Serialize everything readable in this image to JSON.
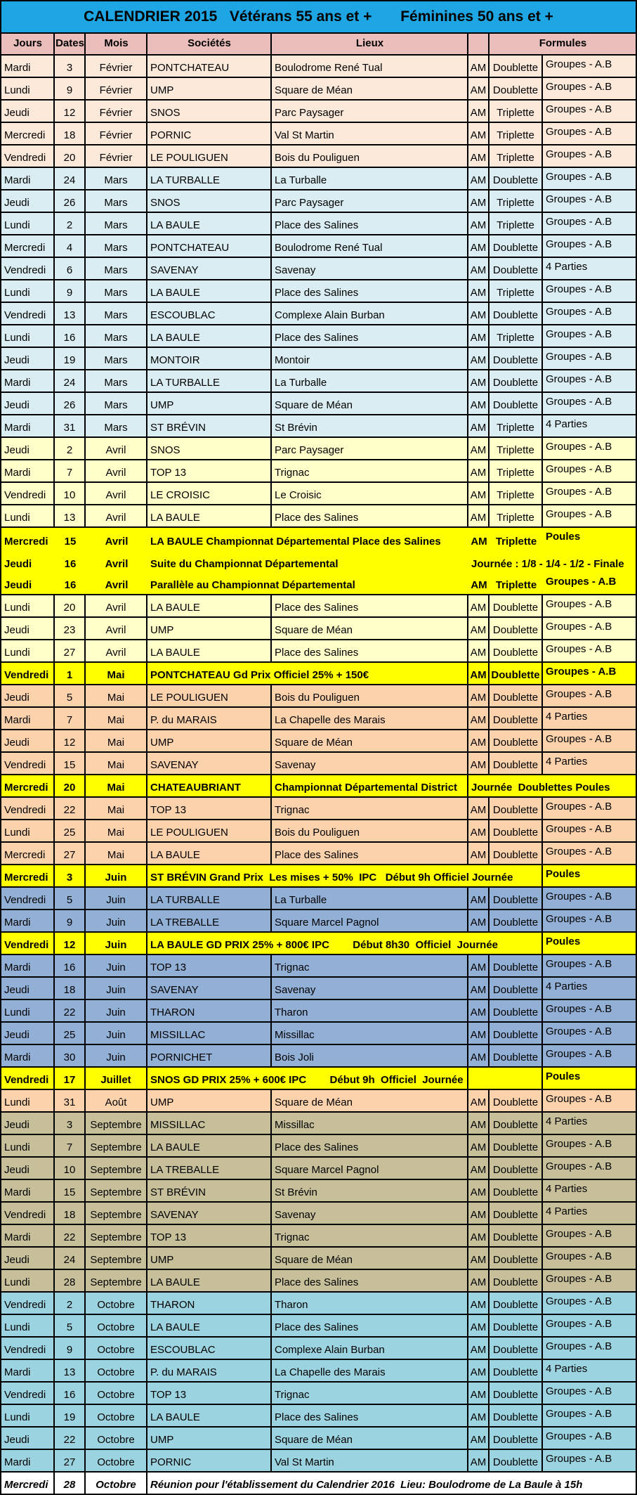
{
  "title": "CALENDRIER 2015   Vétérans 55 ans et +       Féminines 50 ans et +",
  "headers": [
    "Jours",
    "Dates",
    "Mois",
    "Sociétés",
    "Lieux",
    "",
    "Formules"
  ],
  "colors": {
    "title_bg": "#1EA6E4",
    "header_bg": "#E9BEBB",
    "border": "#000000",
    "fevrier": "#FCE9DA",
    "mars": "#D9EDF2",
    "avril": "#FFFFC9",
    "mai": "#FBD2AC",
    "juin": "#92AFD5",
    "aout": "#FBD2AC",
    "septembre": "#C6BF99",
    "octobre": "#9CD3E0",
    "highlight": "#FFFF00",
    "note": "#FFFFFF"
  },
  "rows": [
    {
      "day": "Mardi",
      "date": "3",
      "month": "Février",
      "club": "PONTCHATEAU",
      "venue": "Boulodrome René Tual",
      "am": "AM",
      "formula": "Doublette",
      "groups": "Groupes - A.B",
      "section": "fevrier"
    },
    {
      "day": "Lundi",
      "date": "9",
      "month": "Février",
      "club": "UMP",
      "venue": "Square de Méan",
      "am": "AM",
      "formula": "Doublette",
      "groups": "Groupes - A.B",
      "section": "fevrier"
    },
    {
      "day": "Jeudi",
      "date": "12",
      "month": "Février",
      "club": "SNOS",
      "venue": "Parc Paysager",
      "am": "AM",
      "formula": "Triplette",
      "groups": "Groupes - A.B",
      "section": "fevrier"
    },
    {
      "day": "Mercredi",
      "date": "18",
      "month": "Février",
      "club": "PORNIC",
      "venue": "Val St Martin",
      "am": "AM",
      "formula": "Triplette",
      "groups": "Groupes - A.B",
      "section": "fevrier"
    },
    {
      "day": "Vendredi",
      "date": "20",
      "month": "Février",
      "club": "LE POULIGUEN",
      "venue": "Bois du Pouliguen",
      "am": "AM",
      "formula": "Triplette",
      "groups": "Groupes - A.B",
      "section": "fevrier"
    },
    {
      "day": "Mardi",
      "date": "24",
      "month": "Mars",
      "club": "LA TURBALLE",
      "venue": "La Turballe",
      "am": "AM",
      "formula": "Doublette",
      "groups": "Groupes - A.B",
      "section": "mars"
    },
    {
      "day": "Jeudi",
      "date": "26",
      "month": "Mars",
      "club": "SNOS",
      "venue": "Parc Paysager",
      "am": "AM",
      "formula": "Triplette",
      "groups": "Groupes - A.B",
      "section": "mars"
    },
    {
      "day": "Lundi",
      "date": "2",
      "month": "Mars",
      "club": "LA BAULE",
      "venue": "Place des Salines",
      "am": "AM",
      "formula": "Triplette",
      "groups": "Groupes - A.B",
      "section": "mars"
    },
    {
      "day": "Mercredi",
      "date": "4",
      "month": "Mars",
      "club": "PONTCHATEAU",
      "venue": "Boulodrome René Tual",
      "am": "AM",
      "formula": "Doublette",
      "groups": "Groupes - A.B",
      "section": "mars"
    },
    {
      "day": "Vendredi",
      "date": "6",
      "month": "Mars",
      "club": "SAVENAY",
      "venue": "Savenay",
      "am": "AM",
      "formula": "Doublette",
      "groups": "4 Parties",
      "section": "mars"
    },
    {
      "day": "Lundi",
      "date": "9",
      "month": "Mars",
      "club": "LA BAULE",
      "venue": "Place des Salines",
      "am": "AM",
      "formula": "Triplette",
      "groups": "Groupes - A.B",
      "section": "mars"
    },
    {
      "day": "Vendredi",
      "date": "13",
      "month": "Mars",
      "club": "ESCOUBLAC",
      "venue": "Complexe Alain Burban",
      "am": "AM",
      "formula": "Doublette",
      "groups": "Groupes - A.B",
      "section": "mars"
    },
    {
      "day": "Lundi",
      "date": "16",
      "month": "Mars",
      "club": "LA BAULE",
      "venue": "Place des Salines",
      "am": "AM",
      "formula": "Triplette",
      "groups": "Groupes - A.B",
      "section": "mars"
    },
    {
      "day": "Jeudi",
      "date": "19",
      "month": "Mars",
      "club": "MONTOIR",
      "venue": "Montoir",
      "am": "AM",
      "formula": "Doublette",
      "groups": "Groupes - A.B",
      "section": "mars"
    },
    {
      "day": "Mardi",
      "date": "24",
      "month": "Mars",
      "club": "LA TURBALLE",
      "venue": "La Turballe",
      "am": "AM",
      "formula": "Doublette",
      "groups": "Groupes - A.B",
      "section": "mars"
    },
    {
      "day": "Jeudi",
      "date": "26",
      "month": "Mars",
      "club": "UMP",
      "venue": "Square de Méan",
      "am": "AM",
      "formula": "Doublette",
      "groups": "Groupes - A.B",
      "section": "mars"
    },
    {
      "day": "Mardi",
      "date": "31",
      "month": "Mars",
      "club": "ST BRÉVIN",
      "venue": "St Brévin",
      "am": "AM",
      "formula": "Triplette",
      "groups": "4 Parties",
      "section": "mars"
    },
    {
      "day": "Jeudi",
      "date": "2",
      "month": "Avril",
      "club": "SNOS",
      "venue": "Parc Paysager",
      "am": "AM",
      "formula": "Triplette",
      "groups": "Groupes - A.B",
      "section": "avril"
    },
    {
      "day": "Mardi",
      "date": "7",
      "month": "Avril",
      "club": "TOP 13",
      "venue": "Trignac",
      "am": "AM",
      "formula": "Triplette",
      "groups": "Groupes - A.B",
      "section": "avril"
    },
    {
      "day": "Vendredi",
      "date": "10",
      "month": "Avril",
      "club": "LE CROISIC",
      "venue": "Le Croisic",
      "am": "AM",
      "formula": "Triplette",
      "groups": "Groupes - A.B",
      "section": "avril"
    },
    {
      "day": "Lundi",
      "date": "13",
      "month": "Avril",
      "club": "LA BAULE",
      "venue": "Place des Salines",
      "am": "AM",
      "formula": "Triplette",
      "groups": "Groupes - A.B",
      "section": "avril"
    },
    {
      "day": "Mercredi",
      "date": "15",
      "month": "Avril",
      "kind": "event_amf",
      "text": "LA BAULE Championnat Départemental Place des Salines",
      "am": "AM",
      "formula": "Triplette",
      "groups": "Poules",
      "section": "highlight",
      "no_left_borders": true,
      "join_below": true
    },
    {
      "day": "Jeudi",
      "date": "16",
      "month": "Avril",
      "kind": "event_right",
      "text": "Suite du Championnat Départemental",
      "right": "Journée : 1/8 - 1/4 - 1/2 - Finale",
      "section": "highlight",
      "no_left_borders": true,
      "join_below": true
    },
    {
      "day": "Jeudi",
      "date": "16",
      "month": "Avril",
      "kind": "event_amf",
      "text": "Parallèle au Championnat Départemental",
      "am": "AM",
      "formula": "Triplette",
      "groups": "Groupes - A.B",
      "section": "highlight",
      "no_left_borders": true
    },
    {
      "day": "Lundi",
      "date": "20",
      "month": "Avril",
      "club": "LA BAULE",
      "venue": "Place des Salines",
      "am": "AM",
      "formula": "Doublette",
      "groups": "Groupes - A.B",
      "section": "avril"
    },
    {
      "day": "Jeudi",
      "date": "23",
      "month": "Avril",
      "club": "UMP",
      "venue": "Square de Méan",
      "am": "AM",
      "formula": "Doublette",
      "groups": "Groupes - A.B",
      "section": "avril"
    },
    {
      "day": "Lundi",
      "date": "27",
      "month": "Avril",
      "club": "LA BAULE",
      "venue": "Place des Salines",
      "am": "AM",
      "formula": "Doublette",
      "groups": "Groupes - A.B",
      "section": "avril"
    },
    {
      "day": "Vendredi",
      "date": "1",
      "month": "Mai",
      "kind": "event_cells",
      "text": "PONTCHATEAU Gd Prix Officiel 25% + 150€",
      "am": "AM",
      "formula": "Doublette",
      "groups": "Groupes - A.B",
      "section": "highlight"
    },
    {
      "day": "Jeudi",
      "date": "5",
      "month": "Mai",
      "club": "LE POULIGUEN",
      "venue": "Bois du Pouliguen",
      "am": "AM",
      "formula": "Doublette",
      "groups": "Groupes - A.B",
      "section": "mai"
    },
    {
      "day": "Mardi",
      "date": "7",
      "month": "Mai",
      "club": "P. du MARAIS",
      "venue": "La Chapelle des Marais",
      "am": "AM",
      "formula": "Doublette",
      "groups": "4 Parties",
      "section": "mai"
    },
    {
      "day": "Jeudi",
      "date": "12",
      "month": "Mai",
      "club": "UMP",
      "venue": "Square de Méan",
      "am": "AM",
      "formula": "Doublette",
      "groups": "Groupes - A.B",
      "section": "mai"
    },
    {
      "day": "Vendredi",
      "date": "15",
      "month": "Mai",
      "club": "SAVENAY",
      "venue": "Savenay",
      "am": "AM",
      "formula": "Doublette",
      "groups": "4 Parties",
      "section": "mai"
    },
    {
      "day": "Mercredi",
      "date": "20",
      "month": "Mai",
      "kind": "event_sl_right",
      "club": "CHATEAUBRIANT",
      "venue": "Championnat Départemental District",
      "right": "Journée  Doublettes Poules",
      "section": "highlight"
    },
    {
      "day": "Vendredi",
      "date": "22",
      "month": "Mai",
      "club": "TOP 13",
      "venue": "Trignac",
      "am": "AM",
      "formula": "Doublette",
      "groups": "Groupes - A.B",
      "section": "mai"
    },
    {
      "day": "Lundi",
      "date": "25",
      "month": "Mai",
      "club": "LE POULIGUEN",
      "venue": "Bois du Pouliguen",
      "am": "AM",
      "formula": "Doublette",
      "groups": "Groupes - A.B",
      "section": "mai"
    },
    {
      "day": "Mercredi",
      "date": "27",
      "month": "Mai",
      "club": "LA BAULE",
      "venue": "Place des Salines",
      "am": "AM",
      "formula": "Doublette",
      "groups": "Groupes - A.B",
      "section": "mai"
    },
    {
      "day": "Mercredi",
      "date": "3",
      "month": "Juin",
      "kind": "event_wide",
      "text": "ST BRÉVIN Grand Prix  Les mises + 50%  IPC   Début 9h Officiel Journée",
      "groups": "Poules",
      "section": "highlight"
    },
    {
      "day": "Vendredi",
      "date": "5",
      "month": "Juin",
      "club": "LA TURBALLE",
      "venue": "La Turballe",
      "am": "AM",
      "formula": "Doublette",
      "groups": "Groupes - A.B",
      "section": "juin"
    },
    {
      "day": "Mardi",
      "date": "9",
      "month": "Juin",
      "club": "LA TREBALLE",
      "venue": "Square Marcel Pagnol",
      "am": "AM",
      "formula": "Doublette",
      "groups": "Groupes - A.B",
      "section": "juin"
    },
    {
      "day": "Vendredi",
      "date": "12",
      "month": "Juin",
      "kind": "event_wide",
      "text": "LA BAULE GD PRIX 25% + 800€ IPC        Début 8h30  Officiel  Journée",
      "groups": "Poules",
      "section": "highlight"
    },
    {
      "day": "Mardi",
      "date": "16",
      "month": "Juin",
      "club": "TOP 13",
      "venue": "Trignac",
      "am": "AM",
      "formula": "Doublette",
      "groups": "Groupes - A.B",
      "section": "juin"
    },
    {
      "day": "Jeudi",
      "date": "18",
      "month": "Juin",
      "club": "SAVENAY",
      "venue": "Savenay",
      "am": "AM",
      "formula": "Doublette",
      "groups": "4 Parties",
      "section": "juin"
    },
    {
      "day": "Lundi",
      "date": "22",
      "month": "Juin",
      "club": "THARON",
      "venue": "Tharon",
      "am": "AM",
      "formula": "Doublette",
      "groups": "Groupes - A.B",
      "section": "juin"
    },
    {
      "day": "Jeudi",
      "date": "25",
      "month": "Juin",
      "club": "MISSILLAC",
      "venue": "Missillac",
      "am": "AM",
      "formula": "Doublette",
      "groups": "Groupes - A.B",
      "section": "juin"
    },
    {
      "day": "Mardi",
      "date": "30",
      "month": "Juin",
      "club": "PORNICHET",
      "venue": "Bois Joli",
      "am": "AM",
      "formula": "Doublette",
      "groups": "Groupes - A.B",
      "section": "juin"
    },
    {
      "day": "Vendredi",
      "date": "17",
      "month": "Juillet",
      "kind": "event_empty",
      "text": "SNOS GD PRIX 25% + 600€ IPC        Début 9h  Officiel  Journée",
      "groups": "Poules",
      "section": "highlight"
    },
    {
      "day": "Lundi",
      "date": "31",
      "month": "Août",
      "club": "UMP",
      "venue": "Square de Méan",
      "am": "AM",
      "formula": "Doublette",
      "groups": "Groupes - A.B",
      "section": "aout"
    },
    {
      "day": "Jeudi",
      "date": "3",
      "month": "Septembre",
      "club": "MISSILLAC",
      "venue": "Missillac",
      "am": "AM",
      "formula": "Doublette",
      "groups": "4 Parties",
      "section": "septembre"
    },
    {
      "day": "Lundi",
      "date": "7",
      "month": "Septembre",
      "club": "LA BAULE",
      "venue": "Place des Salines",
      "am": "AM",
      "formula": "Doublette",
      "groups": "Groupes - A.B",
      "section": "septembre"
    },
    {
      "day": "Jeudi",
      "date": "10",
      "month": "Septembre",
      "club": "LA TREBALLE",
      "venue": "Square Marcel Pagnol",
      "am": "AM",
      "formula": "Doublette",
      "groups": "Groupes - A.B",
      "section": "septembre"
    },
    {
      "day": "Mardi",
      "date": "15",
      "month": "Septembre",
      "club": "ST BRÉVIN",
      "venue": "St Brévin",
      "am": "AM",
      "formula": "Doublette",
      "groups": "4 Parties",
      "section": "septembre"
    },
    {
      "day": "Vendredi",
      "date": "18",
      "month": "Septembre",
      "club": "SAVENAY",
      "venue": "Savenay",
      "am": "AM",
      "formula": "Doublette",
      "groups": "4 Parties",
      "section": "septembre"
    },
    {
      "day": "Mardi",
      "date": "22",
      "month": "Septembre",
      "club": "TOP 13",
      "venue": "Trignac",
      "am": "AM",
      "formula": "Doublette",
      "groups": "Groupes - A.B",
      "section": "septembre"
    },
    {
      "day": "Jeudi",
      "date": "24",
      "month": "Septembre",
      "club": "UMP",
      "venue": "Square de Méan",
      "am": "AM",
      "formula": "Doublette",
      "groups": "Groupes - A.B",
      "section": "septembre"
    },
    {
      "day": "Lundi",
      "date": "28",
      "month": "Septembre",
      "club": "LA BAULE",
      "venue": "Place des Salines",
      "am": "AM",
      "formula": "Doublette",
      "groups": "Groupes - A.B",
      "section": "septembre"
    },
    {
      "day": "Vendredi",
      "date": "2",
      "month": "Octobre",
      "club": "THARON",
      "venue": "Tharon",
      "am": "AM",
      "formula": "Doublette",
      "groups": "Groupes - A.B",
      "section": "octobre"
    },
    {
      "day": "Lundi",
      "date": "5",
      "month": "Octobre",
      "club": "LA BAULE",
      "venue": "Place des Salines",
      "am": "AM",
      "formula": "Doublette",
      "groups": "Groupes - A.B",
      "section": "octobre"
    },
    {
      "day": "Vendredi",
      "date": "9",
      "month": "Octobre",
      "club": "ESCOUBLAC",
      "venue": "Complexe Alain Burban",
      "am": "AM",
      "formula": "Doublette",
      "groups": "Groupes - A.B",
      "section": "octobre"
    },
    {
      "day": "Mardi",
      "date": "13",
      "month": "Octobre",
      "club": "P. du MARAIS",
      "venue": "La Chapelle des Marais",
      "am": "AM",
      "formula": "Doublette",
      "groups": "4 Parties",
      "section": "octobre"
    },
    {
      "day": "Vendredi",
      "date": "16",
      "month": "Octobre",
      "club": "TOP 13",
      "venue": "Trignac",
      "am": "AM",
      "formula": "Doublette",
      "groups": "Groupes - A.B",
      "section": "octobre"
    },
    {
      "day": "Lundi",
      "date": "19",
      "month": "Octobre",
      "club": "LA BAULE",
      "venue": "Place des Salines",
      "am": "AM",
      "formula": "Doublette",
      "groups": "Groupes - A.B",
      "section": "octobre"
    },
    {
      "day": "Jeudi",
      "date": "22",
      "month": "Octobre",
      "club": "UMP",
      "venue": "Square de Méan",
      "am": "AM",
      "formula": "Doublette",
      "groups": "Groupes - A.B",
      "section": "octobre"
    },
    {
      "day": "Mardi",
      "date": "27",
      "month": "Octobre",
      "club": "PORNIC",
      "venue": "Val St Martin",
      "am": "AM",
      "formula": "Doublette",
      "groups": "Groupes - A.B",
      "section": "octobre"
    },
    {
      "day": "Mercredi",
      "date": "28",
      "month": "Octobre",
      "kind": "note",
      "text": "Réunion pour l'établissement du Calendrier 2016  Lieu: Boulodrome de La Baule à 15h",
      "section": "note"
    }
  ]
}
